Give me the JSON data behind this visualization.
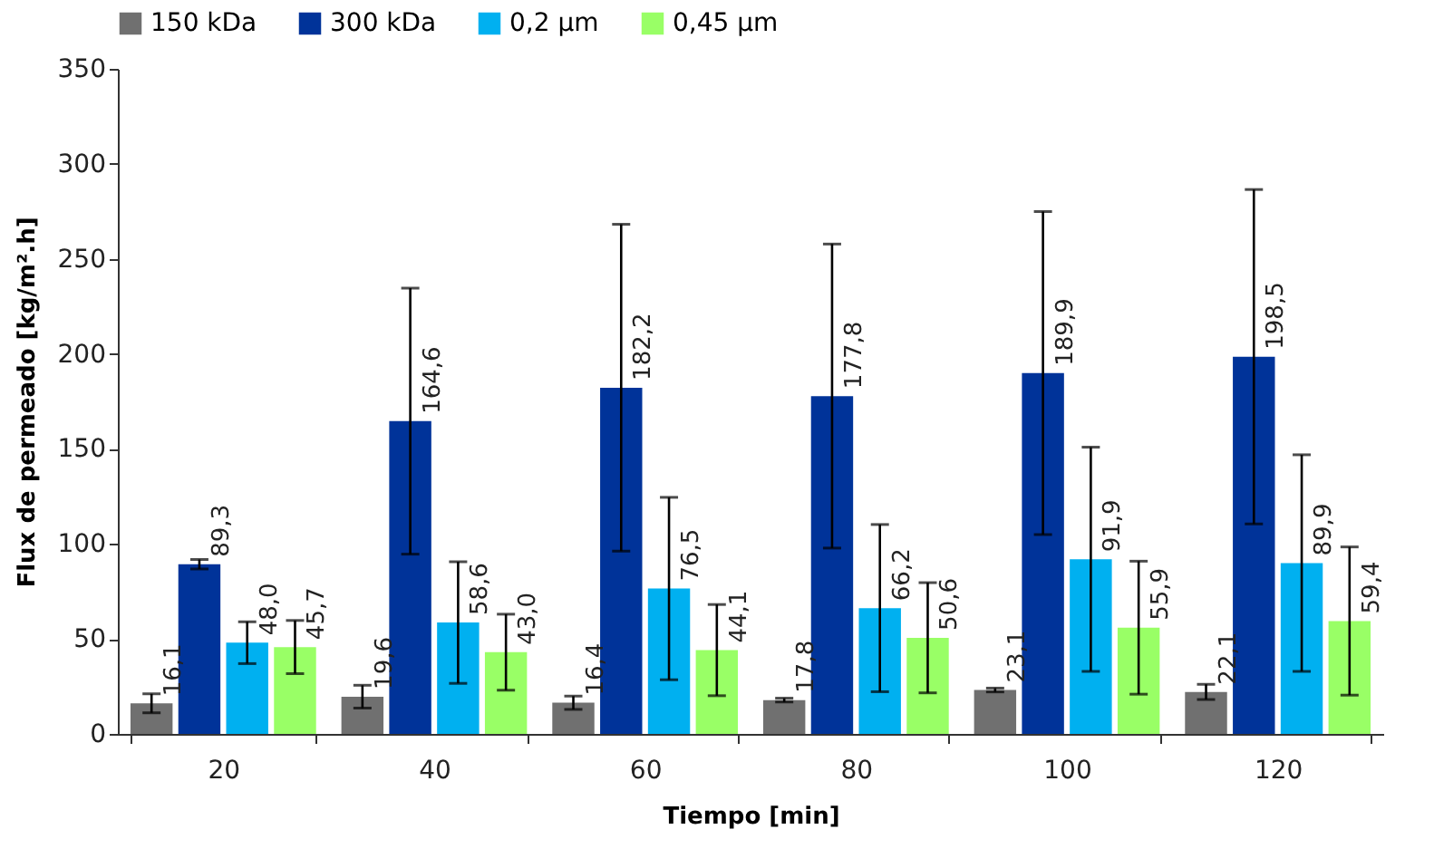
{
  "chart_data": {
    "type": "bar",
    "xlabel": "Tiempo [min]",
    "ylabel": "Flux de permeado [kg/m².h]",
    "categories": [
      "20",
      "40",
      "60",
      "80",
      "100",
      "120"
    ],
    "series": [
      {
        "name": "150 kDa",
        "color": "#707070",
        "values": [
          16.1,
          19.6,
          16.4,
          17.8,
          23.1,
          22.1
        ],
        "errors": [
          5,
          6,
          3.5,
          1,
          1,
          4
        ],
        "value_labels": [
          "16,1",
          "19,6",
          "16,4",
          "17,8",
          "23,1",
          "22,1"
        ]
      },
      {
        "name": "300 kDa",
        "color": "#003399",
        "values": [
          89.3,
          164.6,
          182.2,
          177.8,
          189.9,
          198.5
        ],
        "errors": [
          2.5,
          70,
          86,
          80,
          85,
          88
        ],
        "value_labels": [
          "89,3",
          "164,6",
          "182,2",
          "177,8",
          "189,9",
          "198,5"
        ]
      },
      {
        "name": "0,2 µm",
        "color": "#00b0f0",
        "values": [
          48.0,
          58.6,
          76.5,
          66.2,
          91.9,
          89.9
        ],
        "errors": [
          11,
          32,
          48,
          44,
          59,
          57
        ],
        "value_labels": [
          "48,0",
          "58,6",
          "76,5",
          "66,2",
          "91,9",
          "89,9"
        ]
      },
      {
        "name": "0,45 µm",
        "color": "#99ff66",
        "values": [
          45.7,
          43.0,
          44.1,
          50.6,
          55.9,
          59.4
        ],
        "errors": [
          14,
          20,
          24,
          29,
          35,
          39
        ],
        "value_labels": [
          "45,7",
          "43,0",
          "44,1",
          "50,6",
          "55,9",
          "59,4"
        ]
      }
    ],
    "ylim": [
      0,
      350
    ],
    "yticks": [
      0,
      50,
      100,
      150,
      200,
      250,
      300,
      350
    ],
    "grid": false,
    "legend": "top"
  }
}
